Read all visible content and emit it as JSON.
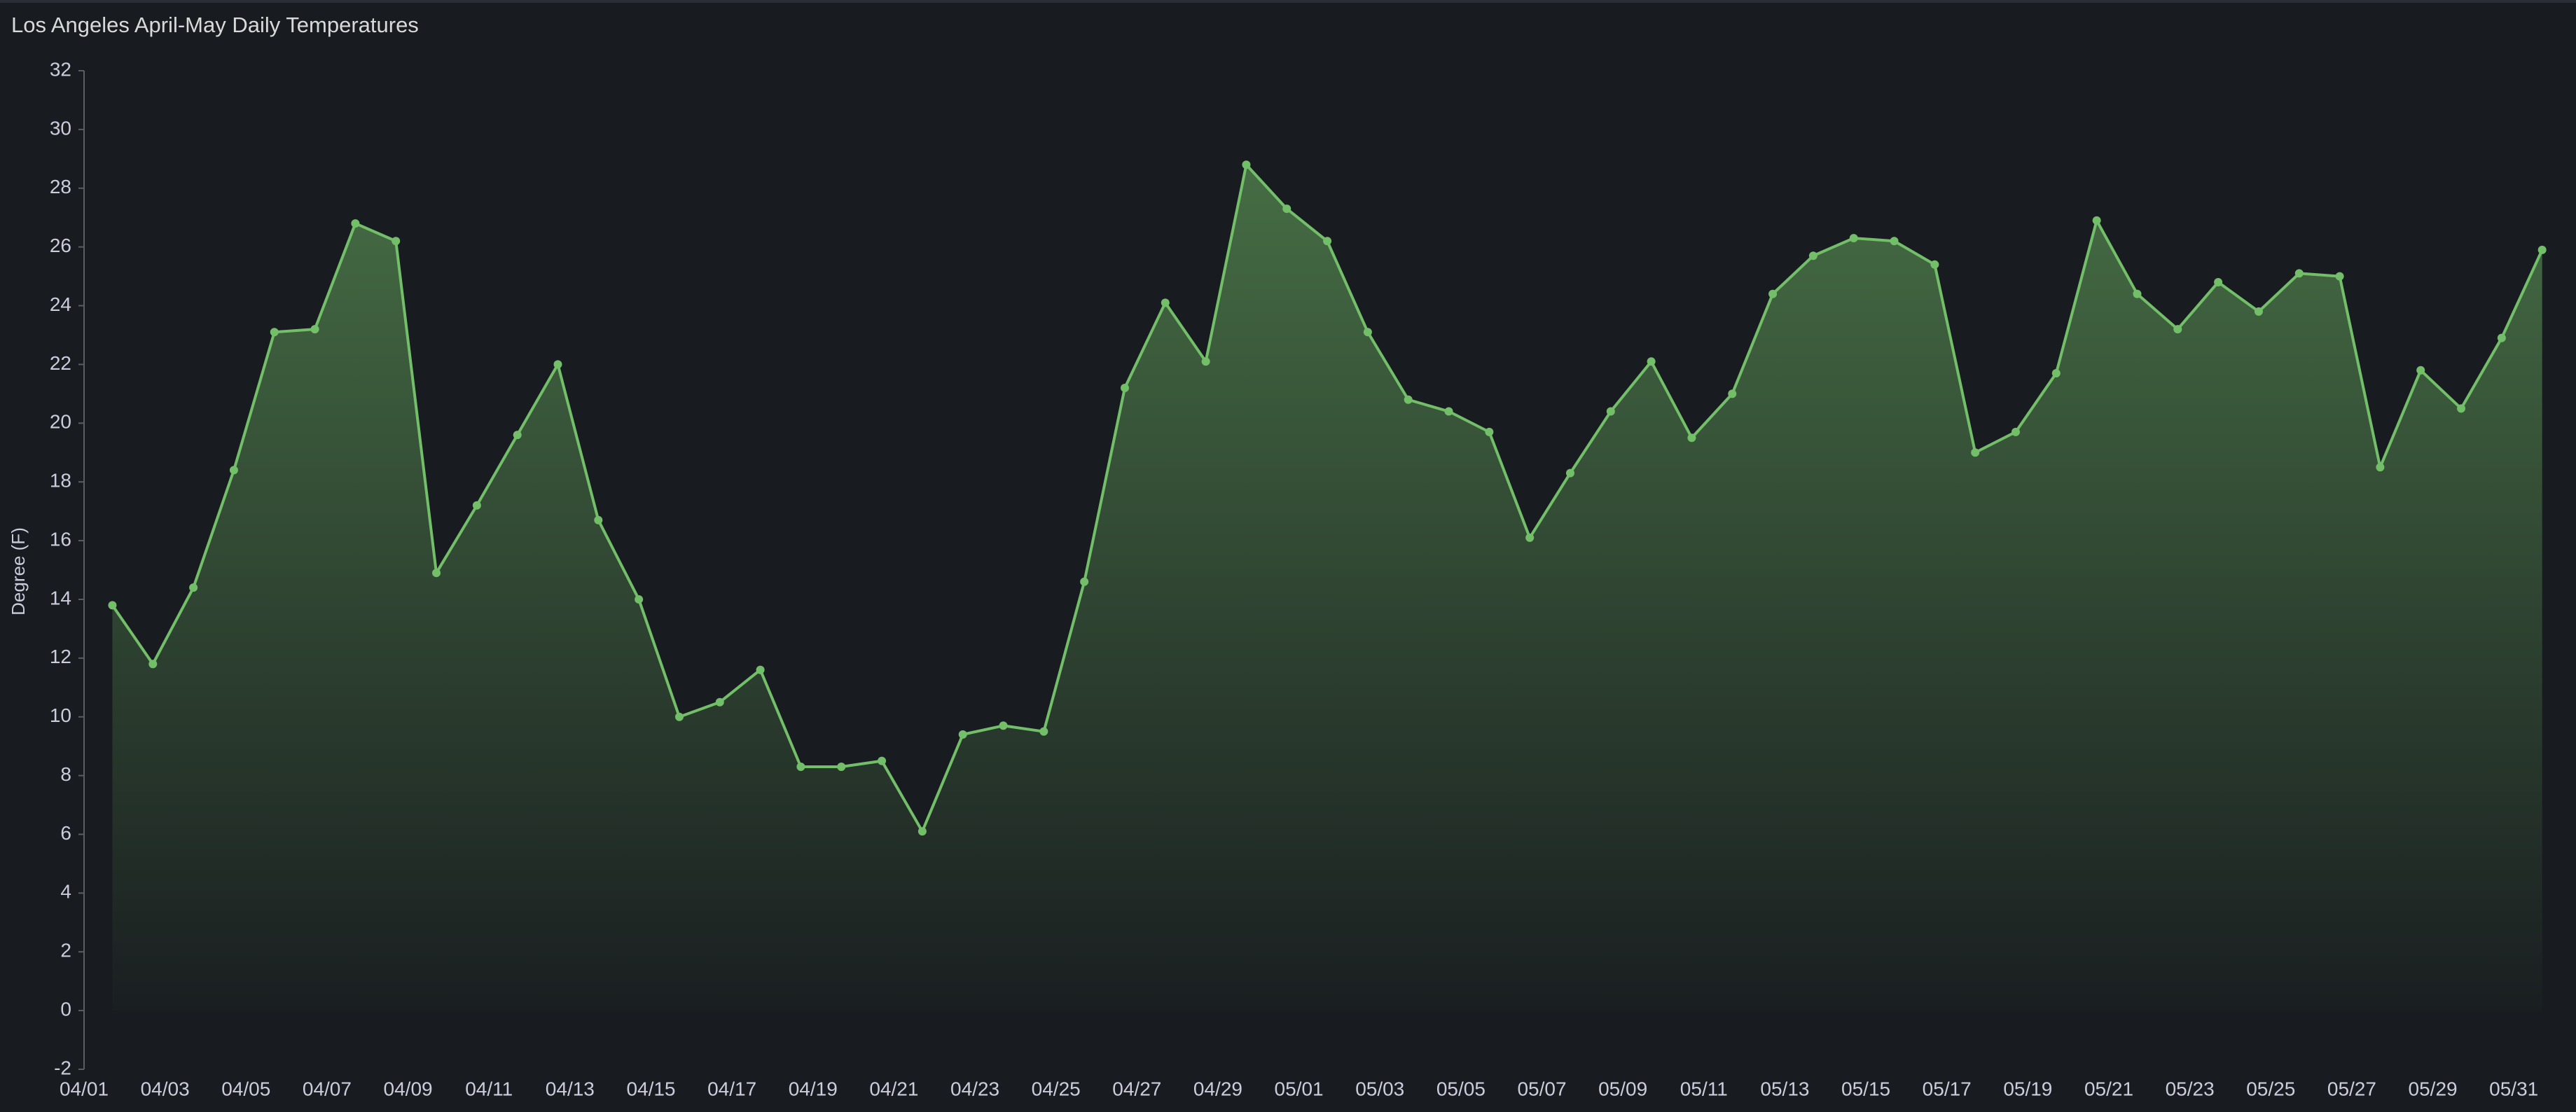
{
  "chart_data": {
    "type": "line",
    "title": "Los Angeles April-May Daily Temperatures",
    "y_label": "Degree (F)",
    "categories": [
      "04/01",
      "04/02",
      "04/03",
      "04/04",
      "04/05",
      "04/06",
      "04/07",
      "04/08",
      "04/09",
      "04/10",
      "04/11",
      "04/12",
      "04/13",
      "04/14",
      "04/15",
      "04/16",
      "04/17",
      "04/18",
      "04/19",
      "04/20",
      "04/21",
      "04/22",
      "04/23",
      "04/24",
      "04/25",
      "04/26",
      "04/27",
      "04/28",
      "04/29",
      "04/30",
      "05/01",
      "05/02",
      "05/03",
      "05/04",
      "05/05",
      "05/06",
      "05/07",
      "05/08",
      "05/09",
      "05/10",
      "05/11",
      "05/12",
      "05/13",
      "05/14",
      "05/15",
      "05/16",
      "05/17",
      "05/18",
      "05/19",
      "05/20",
      "05/21",
      "05/22",
      "05/23",
      "05/24",
      "05/25",
      "05/26",
      "05/27",
      "05/28",
      "05/29",
      "05/30",
      "05/31"
    ],
    "values": [
      13.8,
      11.8,
      14.4,
      18.4,
      23.1,
      23.2,
      26.8,
      26.2,
      14.9,
      17.2,
      19.6,
      22.0,
      16.7,
      14.0,
      10.0,
      10.5,
      11.6,
      8.3,
      8.3,
      8.5,
      6.1,
      9.4,
      9.7,
      9.5,
      14.6,
      21.2,
      24.1,
      22.1,
      28.8,
      27.3,
      26.2,
      23.1,
      20.8,
      20.4,
      19.7,
      16.1,
      18.3,
      20.4,
      22.1,
      19.5,
      21.0,
      24.4,
      25.7,
      26.3,
      26.2,
      25.4,
      19.0,
      19.7,
      21.7,
      26.9,
      24.4,
      23.2,
      24.8,
      23.8,
      25.1,
      25.0,
      18.5,
      21.8,
      20.5,
      22.9,
      25.9
    ],
    "color": "#73bf69",
    "ylim": [
      -2,
      32
    ],
    "yticks": [
      -2,
      0,
      2,
      4,
      6,
      8,
      10,
      12,
      14,
      16,
      18,
      20,
      22,
      24,
      26,
      28,
      30,
      32
    ],
    "grid": false
  }
}
